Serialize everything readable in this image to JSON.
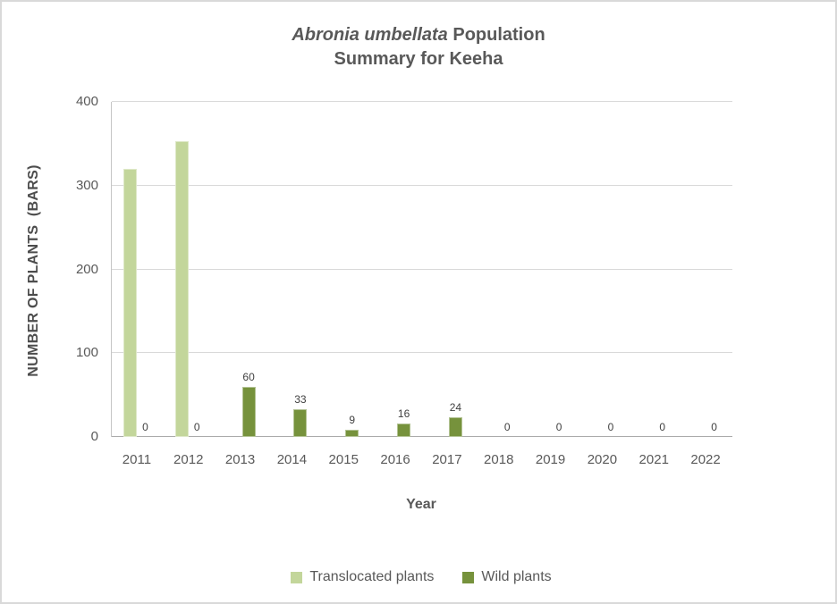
{
  "title": {
    "italic": "Abronia umbellata",
    "rest": " Population",
    "line2": "Summary for Keeha"
  },
  "colors": {
    "translocated": "#c3d69b",
    "wild": "#76923c",
    "gridline": "#d9d9d9",
    "axis": "#ababab",
    "text": "#595959",
    "data_label": "#404040",
    "frame_border": "#d9d9d9"
  },
  "chart_data": {
    "type": "bar",
    "title": "Abronia umbellata Population Summary for Keeha",
    "categories": [
      "2011",
      "2012",
      "2013",
      "2014",
      "2015",
      "2016",
      "2017",
      "2018",
      "2019",
      "2020",
      "2021",
      "2022"
    ],
    "series": [
      {
        "name": "Translocated plants",
        "color": "#c3d69b",
        "values": [
          320,
          353,
          0,
          0,
          0,
          0,
          0,
          0,
          0,
          0,
          0,
          0
        ],
        "data_labels": false
      },
      {
        "name": "Wild plants",
        "color": "#76923c",
        "values": [
          0,
          0,
          60,
          33,
          9,
          16,
          24,
          0,
          0,
          0,
          0,
          0
        ],
        "data_labels": true
      }
    ],
    "xlabel": "Year",
    "ylabel": "NUMBER OF PLANTS  (BARS)",
    "ylim": [
      0,
      400
    ],
    "yticks": [
      0,
      100,
      200,
      300,
      400
    ],
    "grid": true,
    "legend_position": "bottom"
  }
}
